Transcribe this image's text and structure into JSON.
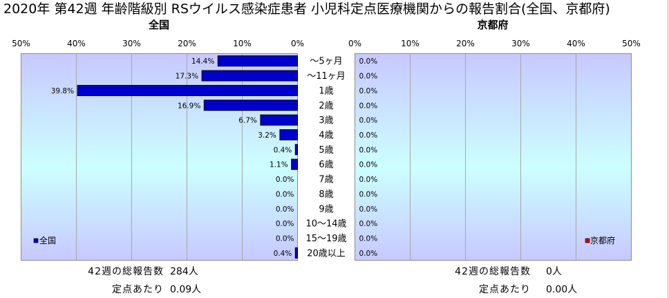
{
  "colors": {
    "plot_background_edge": "#c8c8ff",
    "plot_background_center": "#ccffff",
    "gridline": "#a6a6a6",
    "plot_border": "#8c8c8c",
    "bar_outline": "#000000"
  },
  "chart_data": {
    "type": "bar",
    "horizontal": true,
    "title": "2020年 第42週 年齢階級別 RSウイルス感染症患者 小児科定点医療機関からの報告割合(全国、京都府)",
    "categories": [
      "～5ヶ月",
      "～11ヶ月",
      "1歳",
      "2歳",
      "3歳",
      "4歳",
      "5歳",
      "6歳",
      "7歳",
      "8歳",
      "9歳",
      "10～14歳",
      "15～19歳",
      "20歳以上"
    ],
    "xlim": [
      0,
      50
    ],
    "xticks": [
      0,
      10,
      20,
      30,
      40,
      50
    ],
    "xtick_labels": [
      "0%",
      "10%",
      "20%",
      "30%",
      "40%",
      "50%"
    ],
    "grid": true,
    "series": [
      {
        "name": "全国",
        "values": [
          14.4,
          17.3,
          39.8,
          16.9,
          6.7,
          3.2,
          0.4,
          1.1,
          0.0,
          0.0,
          0.0,
          0.0,
          0.0,
          0.4
        ],
        "data_labels": [
          "14.4%",
          "17.3%",
          "39.8%",
          "16.9%",
          "6.7%",
          "3.2%",
          "0.4%",
          "1.1%",
          "0.0%",
          "0.0%",
          "0.0%",
          "0.0%",
          "0.0%",
          "0.4%"
        ],
        "color": "#0000cc",
        "x_reversed": true,
        "legend": "bottom-left"
      },
      {
        "name": "京都府",
        "values": [
          0.0,
          0.0,
          0.0,
          0.0,
          0.0,
          0.0,
          0.0,
          0.0,
          0.0,
          0.0,
          0.0,
          0.0,
          0.0,
          0.0
        ],
        "data_labels": [
          "0.0%",
          "0.0%",
          "0.0%",
          "0.0%",
          "0.0%",
          "0.0%",
          "0.0%",
          "0.0%",
          "0.0%",
          "0.0%",
          "0.0%",
          "0.0%",
          "0.0%",
          "0.0%"
        ],
        "color": "#cc0000",
        "x_reversed": false,
        "legend": "bottom-right"
      }
    ]
  },
  "summary": [
    {
      "total_label": "42週の総報告数",
      "total_value": "284人",
      "per_site_label": "定点あたり",
      "per_site_value": "0.09人"
    },
    {
      "total_label": "42週の総報告数",
      "total_value": "0人",
      "per_site_label": "定点あたり",
      "per_site_value": "0.00人"
    }
  ]
}
